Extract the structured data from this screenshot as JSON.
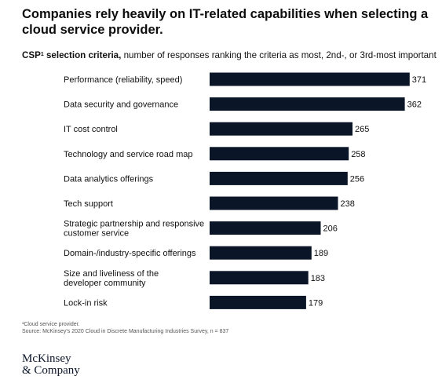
{
  "chart_data": {
    "type": "bar",
    "orientation": "horizontal",
    "title": "Companies rely heavily on IT-related capabilities when selecting a cloud service provider.",
    "subtitle_lead": "CSP",
    "subtitle_lead_sup": "1",
    "subtitle_lead_suffix": " selection criteria,",
    "subtitle_rest": " number of responses ranking the criteria as most, 2nd-, or 3rd-most important",
    "categories": [
      [
        "Performance (reliability, speed)"
      ],
      [
        "Data security and governance"
      ],
      [
        "IT cost control"
      ],
      [
        "Technology and service road map"
      ],
      [
        "Data analytics offerings"
      ],
      [
        "Tech support"
      ],
      [
        "Strategic partnership and responsive",
        "customer service"
      ],
      [
        "Domain-/industry-specific offerings"
      ],
      [
        "Size and liveliness of the",
        "developer community"
      ],
      [
        "Lock-in risk"
      ]
    ],
    "values": [
      371,
      362,
      265,
      258,
      256,
      238,
      206,
      189,
      183,
      179
    ],
    "value_labels": [
      "371",
      "362",
      "265",
      "258",
      "256",
      "238",
      "206",
      "189",
      "183",
      "179"
    ],
    "bar_color": "#0b1528",
    "grid": false,
    "legend": "none"
  },
  "footnotes": {
    "note1": "¹Cloud service provider.",
    "source": "Source: McKinsey's 2020 Cloud in Discrete Manufacturing Industries Survey, n = 837"
  },
  "logo": {
    "line1": "McKinsey",
    "line2": "& Company"
  }
}
